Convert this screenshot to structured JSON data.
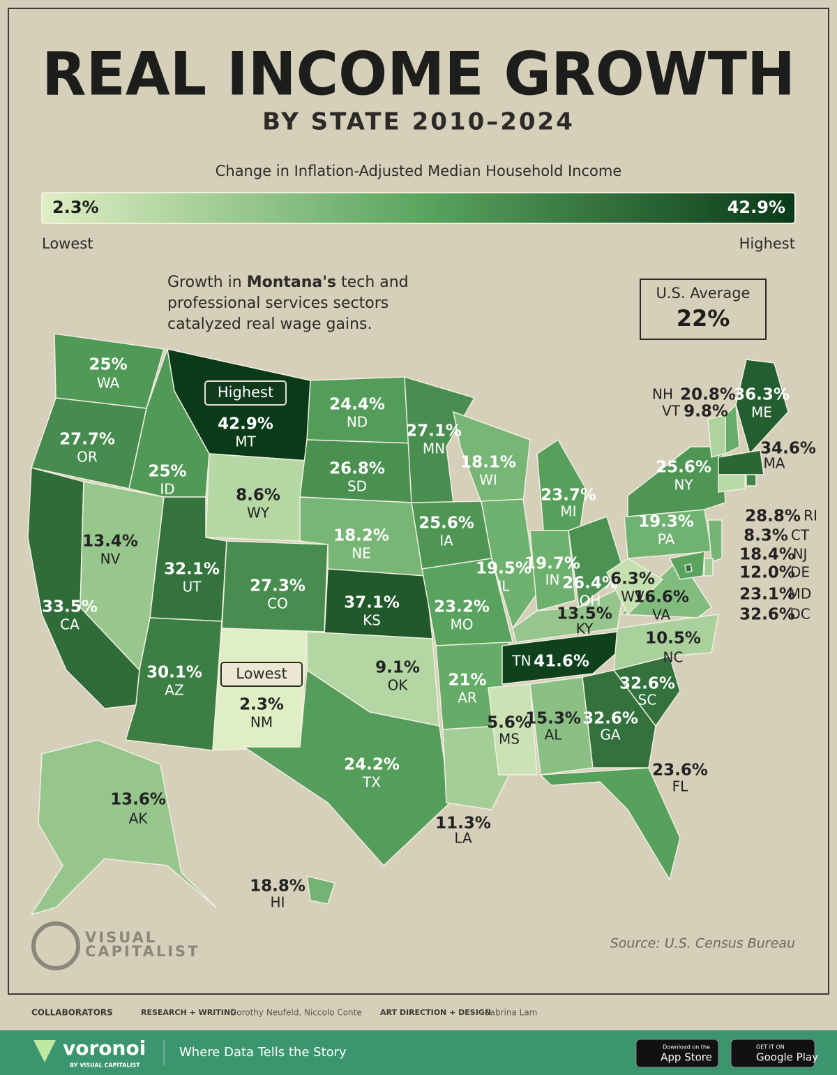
{
  "chart_data": {
    "type": "choropleth",
    "title": "REAL INCOME GROWTH",
    "subtitle": "BY STATE 2010–2024",
    "legend_title": "Change in Inflation-Adjusted Median Household Income",
    "colorbar": {
      "min": 2.3,
      "max": 42.9,
      "min_label": "2.3%",
      "max_label": "42.9%",
      "low_text": "Lowest",
      "high_text": "Highest"
    },
    "color_scale": [
      "#dfeec4",
      "#5ba660",
      "#0a3a18"
    ],
    "annotation": {
      "before": "Growth in ",
      "bold": "Montana's",
      "after": " tech and",
      "line2": "professional services sectors",
      "line3": "catalyzed real wage gains."
    },
    "average": {
      "label": "U.S. Average",
      "value": 22,
      "value_label": "22%"
    },
    "callouts": [
      "Highest",
      "Lowest"
    ],
    "categories": [
      "WA",
      "OR",
      "CA",
      "NV",
      "ID",
      "MT",
      "WY",
      "UT",
      "AZ",
      "CO",
      "NM",
      "ND",
      "SD",
      "NE",
      "KS",
      "OK",
      "TX",
      "MN",
      "IA",
      "MO",
      "AR",
      "LA",
      "WI",
      "IL",
      "MI",
      "IN",
      "OH",
      "KY",
      "TN",
      "MS",
      "AL",
      "GA",
      "FL",
      "SC",
      "NC",
      "VA",
      "WV",
      "PA",
      "NY",
      "VT",
      "NH",
      "ME",
      "MA",
      "RI",
      "CT",
      "NJ",
      "DE",
      "MD",
      "DC",
      "AK",
      "HI"
    ],
    "values": [
      25,
      27.7,
      33.5,
      13.4,
      25,
      42.9,
      8.6,
      32.1,
      30.1,
      27.3,
      2.3,
      24.4,
      26.8,
      18.2,
      37.1,
      9.1,
      24.2,
      27.1,
      25.6,
      23.2,
      21,
      11.3,
      18.1,
      19.5,
      23.7,
      19.7,
      26.4,
      13.5,
      41.6,
      5.6,
      15.3,
      32.6,
      23.6,
      32.6,
      10.5,
      16.6,
      6.3,
      19.3,
      25.6,
      9.8,
      20.8,
      36.3,
      34.6,
      28.8,
      8.3,
      18.4,
      12,
      23.1,
      32.6,
      13.6,
      18.8
    ],
    "value_labels": [
      "25%",
      "27.7%",
      "33.5%",
      "13.4%",
      "25%",
      "42.9%",
      "8.6%",
      "32.1%",
      "30.1%",
      "27.3%",
      "2.3%",
      "24.4%",
      "26.8%",
      "18.2%",
      "37.1%",
      "9.1%",
      "24.2%",
      "27.1%",
      "25.6%",
      "23.2%",
      "21%",
      "11.3%",
      "18.1%",
      "19.5%",
      "23.7%",
      "19.7%",
      "26.4%",
      "13.5%",
      "41.6%",
      "5.6%",
      "15.3%",
      "32.6%",
      "23.6%",
      "32.6%",
      "10.5%",
      "16.6%",
      "6.3%",
      "19.3%",
      "25.6%",
      "9.8%",
      "20.8%",
      "36.3%",
      "34.6%",
      "28.8%",
      "8.3%",
      "18.4%",
      "12.0%",
      "23.1%",
      "32.6%",
      "13.6%",
      "18.8%"
    ],
    "source": "Source: U.S. Census Bureau"
  },
  "branding": {
    "logo_line1": "VISUAL",
    "logo_line2": "CAPITALIST"
  },
  "credits": {
    "label": "COLLABORATORS",
    "role1": "RESEARCH + WRITING",
    "names1": "Dorothy Neufeld, Niccolo Conte",
    "role2": "ART DIRECTION + DESIGN",
    "names2": "Sabrina Lam"
  },
  "footer": {
    "brand": "voronoi",
    "brand_sub": "BY VISUAL CAPITALIST",
    "tagline": "Where Data Tells the Story",
    "app_small": "Download on the",
    "app_big": "App Store",
    "play_small": "GET IT ON",
    "play_big": "Google Play"
  }
}
